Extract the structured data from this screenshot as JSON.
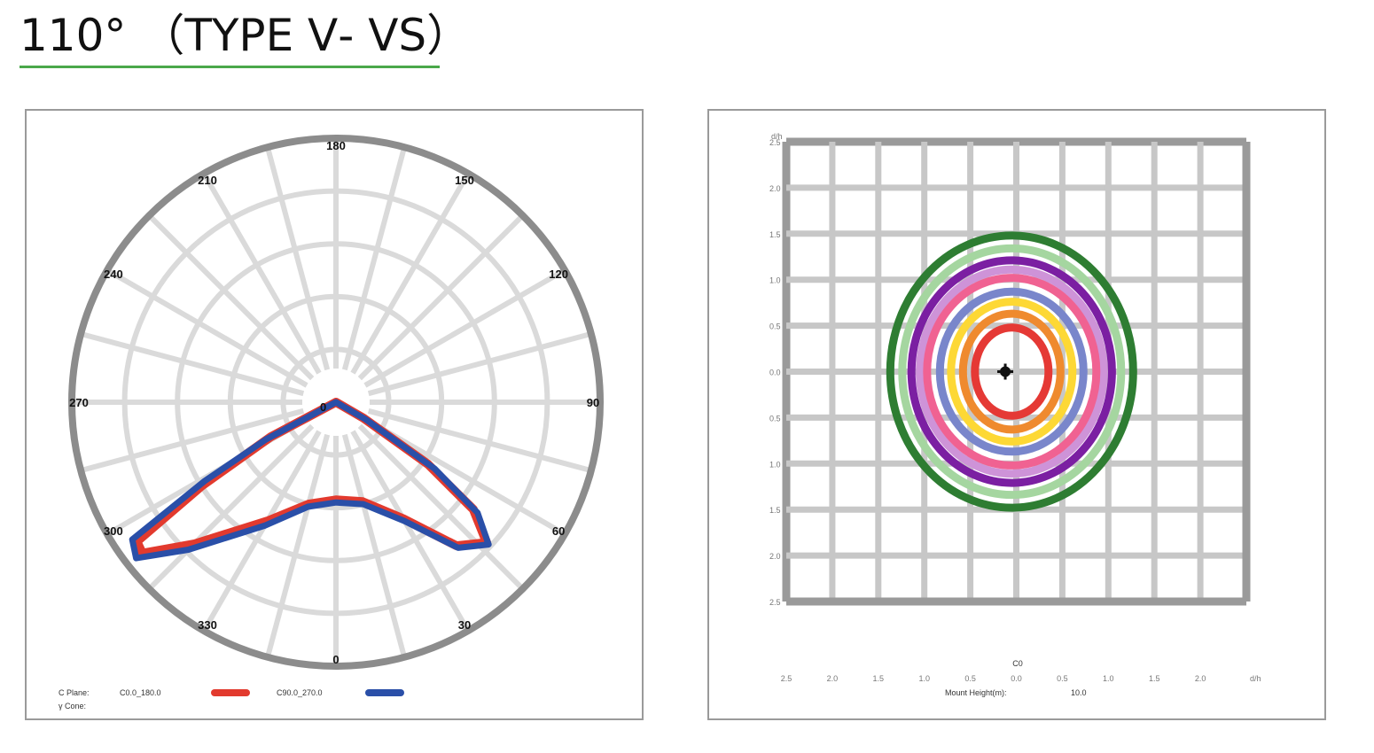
{
  "header": {
    "title": "110°  （TYPE Ⅴ- VS）"
  },
  "chart_data": [
    {
      "type": "polar",
      "angle_labels": [
        {
          "angle": 180,
          "label": "180"
        },
        {
          "angle": 150,
          "label": "150"
        },
        {
          "angle": 120,
          "label": "120"
        },
        {
          "angle": 90,
          "label": "90"
        },
        {
          "angle": 60,
          "label": "60"
        },
        {
          "angle": 30,
          "label": "30"
        },
        {
          "angle": 0,
          "label": "0"
        },
        {
          "angle": -30,
          "label": "330"
        },
        {
          "angle": -60,
          "label": "300"
        },
        {
          "angle": -90,
          "label": "270"
        },
        {
          "angle": -120,
          "label": "240"
        },
        {
          "angle": -150,
          "label": "210"
        }
      ],
      "center_label": "0",
      "legend": {
        "c_plane_label": "C Plane:",
        "gamma_cone_label": "γ Cone:",
        "items": [
          {
            "name": "C0.0_180.0",
            "color": "#e23a2e"
          },
          {
            "name": "C90.0_270.0",
            "color": "#2a4fa8"
          }
        ]
      },
      "series": [
        {
          "name": "C0.0_180.0",
          "color": "#e23a2e",
          "points": [
            [
              -62,
              0.28
            ],
            [
              -58,
              0.6
            ],
            [
              -55,
              0.92
            ],
            [
              -52,
              0.93
            ],
            [
              -45,
              0.76
            ],
            [
              -30,
              0.52
            ],
            [
              -15,
              0.4
            ],
            [
              0,
              0.37
            ],
            [
              15,
              0.39
            ],
            [
              30,
              0.51
            ],
            [
              40,
              0.71
            ],
            [
              47,
              0.78
            ],
            [
              52,
              0.66
            ],
            [
              56,
              0.42
            ],
            [
              60,
              0.12
            ]
          ]
        },
        {
          "name": "C90.0_270.0",
          "color": "#2a4fa8",
          "points": [
            [
              -62,
              0.3
            ],
            [
              -59,
              0.58
            ],
            [
              -56,
              0.93
            ],
            [
              -52,
              0.96
            ],
            [
              -45,
              0.79
            ],
            [
              -30,
              0.54
            ],
            [
              -15,
              0.41
            ],
            [
              0,
              0.38
            ],
            [
              15,
              0.4
            ],
            [
              30,
              0.52
            ],
            [
              40,
              0.72
            ],
            [
              47,
              0.79
            ],
            [
              52,
              0.68
            ],
            [
              56,
              0.45
            ],
            [
              60,
              0.13
            ]
          ]
        }
      ]
    },
    {
      "type": "isolux",
      "y_axis_title": "d/h",
      "x_axis_title": "d/h",
      "y_ticks": [
        "2.5",
        "2.0",
        "1.5",
        "1.0",
        "0.5",
        "0.0",
        "0.5",
        "1.0",
        "1.5",
        "2.0",
        "2.5"
      ],
      "x_ticks": [
        "2.5",
        "2.0",
        "1.5",
        "1.0",
        "0.5",
        "0.0",
        "0.5",
        "1.0",
        "1.5",
        "2.0"
      ],
      "center_label": "C0",
      "mount_height_label": "Mount Height(m):",
      "mount_height_value": "10.0",
      "xlim": [
        -2.5,
        2.5
      ],
      "ylim": [
        -2.5,
        2.5
      ],
      "contours": [
        {
          "color": "#2e7d32",
          "cx": -0.05,
          "cy": 0.0,
          "rx": 1.32,
          "ry": 1.48
        },
        {
          "color": "#a5d6a0",
          "cx": -0.05,
          "cy": 0.0,
          "rx": 1.19,
          "ry": 1.34
        },
        {
          "color": "#7b1fa2",
          "cx": -0.05,
          "cy": 0.0,
          "rx": 1.09,
          "ry": 1.21
        },
        {
          "color": "#ce93d8",
          "cx": -0.05,
          "cy": 0.0,
          "rx": 1.0,
          "ry": 1.11
        },
        {
          "color": "#f06292",
          "cx": -0.05,
          "cy": 0.0,
          "rx": 0.92,
          "ry": 1.02
        },
        {
          "color": "#7986cb",
          "cx": -0.05,
          "cy": 0.0,
          "rx": 0.78,
          "ry": 0.87
        },
        {
          "color": "#fdd835",
          "cx": -0.05,
          "cy": 0.0,
          "rx": 0.66,
          "ry": 0.76
        },
        {
          "color": "#ef8a2e",
          "cx": -0.05,
          "cy": 0.0,
          "rx": 0.53,
          "ry": 0.63
        },
        {
          "color": "#e53935",
          "cx": -0.05,
          "cy": 0.0,
          "rx": 0.4,
          "ry": 0.48
        }
      ],
      "center_point": {
        "x": -0.12,
        "y": 0.0
      }
    }
  ]
}
